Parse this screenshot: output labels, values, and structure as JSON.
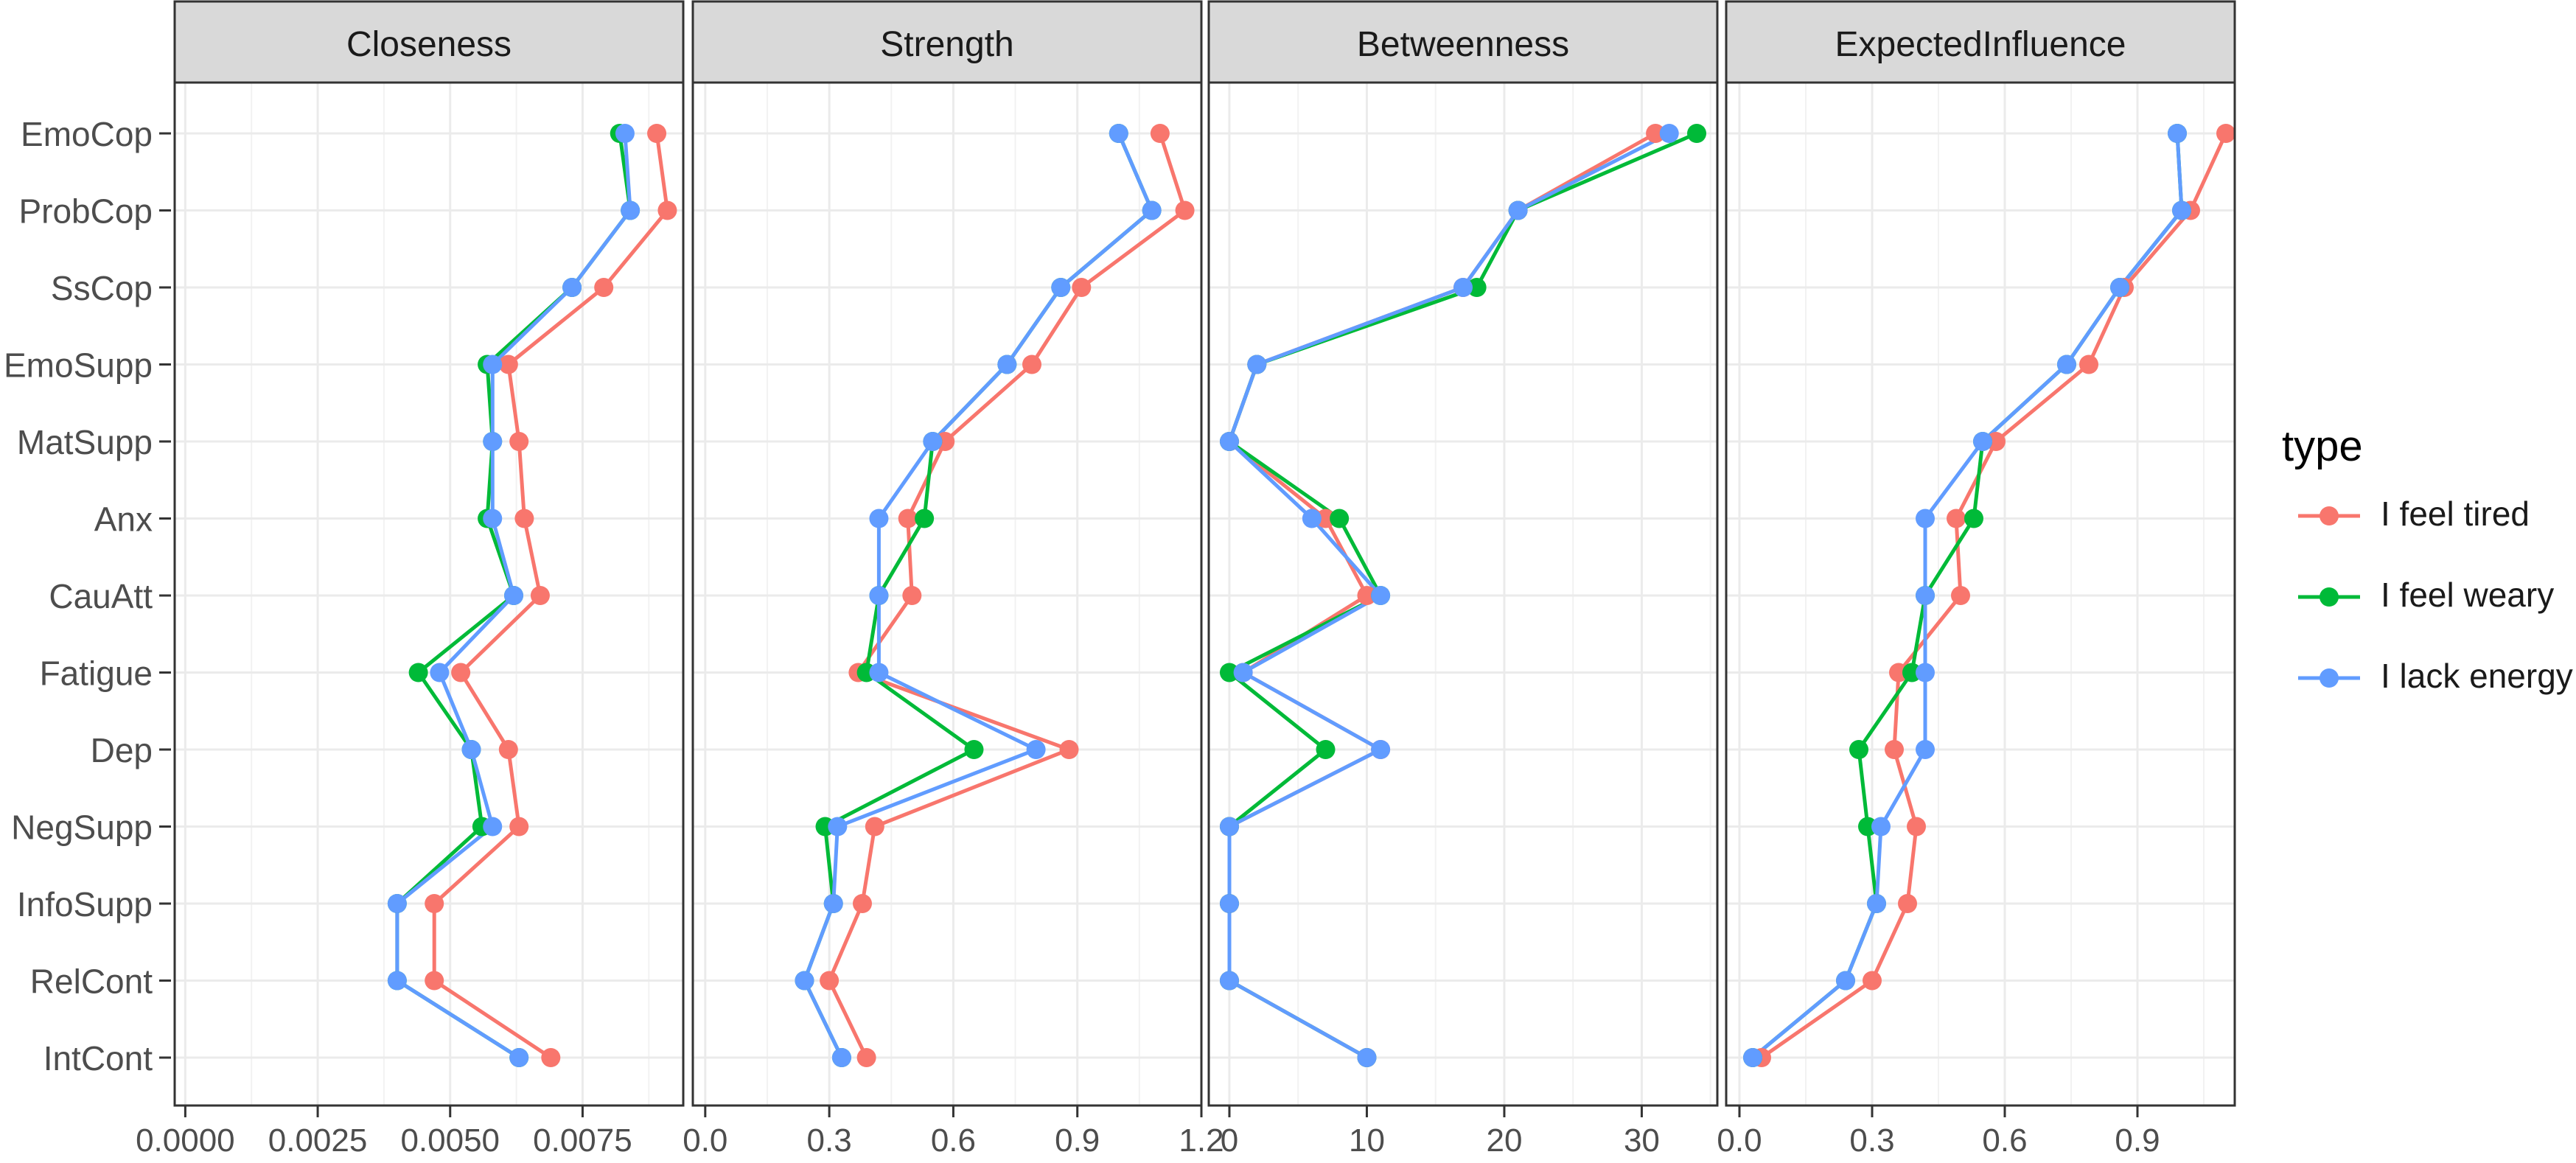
{
  "chart_data": {
    "type": "line",
    "categories": [
      "EmoCop",
      "ProbCop",
      "SsCop",
      "EmoSupp",
      "MatSupp",
      "Anx",
      "CauAtt",
      "Fatigue",
      "Dep",
      "NegSupp",
      "InfoSupp",
      "RelCont",
      "IntCont"
    ],
    "legend": {
      "title": "type",
      "position": "right",
      "items": [
        {
          "name": "I feel tired",
          "color": "#F8766D"
        },
        {
          "name": "I feel weary",
          "color": "#00BA38"
        },
        {
          "name": "I lack energy",
          "color": "#619CFF"
        }
      ]
    },
    "panels": [
      {
        "title": "Closeness",
        "xlim": [
          -0.0002,
          0.0094
        ],
        "ticks": [
          0,
          0.0025,
          0.005,
          0.0075
        ],
        "tick_labels": [
          "0.0000",
          "0.0025",
          "0.0050",
          "0.0075"
        ],
        "series": [
          {
            "name": "I feel tired",
            "values": [
              0.0089,
              0.0091,
              0.0079,
              0.0061,
              0.0063,
              0.0064,
              0.0067,
              0.0052,
              0.0061,
              0.0063,
              0.0047,
              0.0047,
              0.0069
            ]
          },
          {
            "name": "I feel weary",
            "values": [
              0.0082,
              0.0084,
              0.0073,
              0.0057,
              0.0058,
              0.0057,
              0.0062,
              0.0044,
              0.0054,
              0.0056,
              0.004,
              0.004,
              0.0063
            ]
          },
          {
            "name": "I lack energy",
            "values": [
              0.0083,
              0.0084,
              0.0073,
              0.0058,
              0.0058,
              0.0058,
              0.0062,
              0.0048,
              0.0054,
              0.0058,
              0.004,
              0.004,
              0.0063
            ]
          }
        ]
      },
      {
        "title": "Strength",
        "xlim": [
          -0.03,
          1.2
        ],
        "ticks": [
          0,
          0.3,
          0.6,
          0.9,
          1.2
        ],
        "tick_labels": [
          "0.0",
          "0.3",
          "0.6",
          "0.9",
          "1.2"
        ],
        "series": [
          {
            "name": "I feel tired",
            "values": [
              1.1,
              1.16,
              0.91,
              0.79,
              0.58,
              0.49,
              0.5,
              0.37,
              0.88,
              0.41,
              0.38,
              0.3,
              0.39
            ]
          },
          {
            "name": "I feel weary",
            "values": [
              1.0,
              1.08,
              0.86,
              0.73,
              0.55,
              0.53,
              0.42,
              0.39,
              0.65,
              0.29,
              0.31,
              0.24,
              0.33
            ]
          },
          {
            "name": "I lack energy",
            "values": [
              1.0,
              1.08,
              0.86,
              0.73,
              0.55,
              0.42,
              0.42,
              0.42,
              0.8,
              0.32,
              0.31,
              0.24,
              0.33
            ]
          }
        ]
      },
      {
        "title": "Betweenness",
        "xlim": [
          -1.5,
          35.5
        ],
        "ticks": [
          0,
          10,
          20,
          30
        ],
        "tick_labels": [
          "0",
          "10",
          "20",
          "30"
        ],
        "series": [
          {
            "name": "I feel tired",
            "values": [
              31,
              21,
              17,
              2,
              0,
              7,
              10,
              1,
              11,
              0,
              0,
              0,
              10
            ]
          },
          {
            "name": "I feel weary",
            "values": [
              34,
              21,
              18,
              2,
              0,
              8,
              11,
              0,
              7,
              0,
              0,
              0,
              10
            ]
          },
          {
            "name": "I lack energy",
            "values": [
              32,
              21,
              17,
              2,
              0,
              6,
              11,
              1,
              11,
              0,
              0,
              0,
              10
            ]
          }
        ]
      },
      {
        "title": "ExpectedInfluence",
        "xlim": [
          -0.03,
          1.12
        ],
        "ticks": [
          0,
          0.3,
          0.6,
          0.9
        ],
        "tick_labels": [
          "0.0",
          "0.3",
          "0.6",
          "0.9"
        ],
        "series": [
          {
            "name": "I feel tired",
            "values": [
              1.1,
              1.02,
              0.87,
              0.79,
              0.58,
              0.49,
              0.5,
              0.36,
              0.35,
              0.4,
              0.38,
              0.3,
              0.05
            ]
          },
          {
            "name": "I feel weary",
            "values": [
              0.99,
              1.0,
              0.86,
              0.74,
              0.55,
              0.53,
              0.42,
              0.39,
              0.27,
              0.29,
              0.31,
              0.24,
              0.03
            ]
          },
          {
            "name": "I lack energy",
            "values": [
              0.99,
              1.0,
              0.86,
              0.74,
              0.55,
              0.42,
              0.42,
              0.42,
              0.42,
              0.32,
              0.31,
              0.24,
              0.03
            ]
          }
        ]
      }
    ]
  }
}
